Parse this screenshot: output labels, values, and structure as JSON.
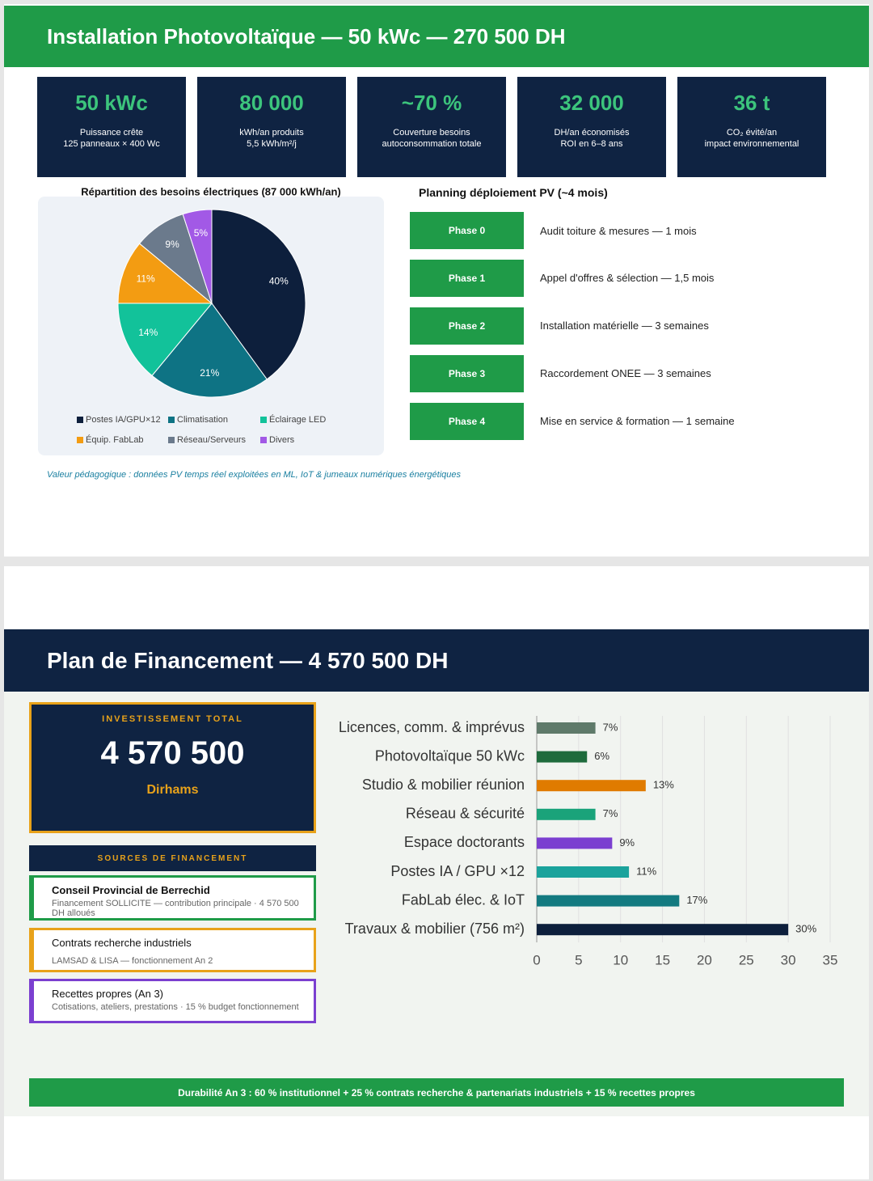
{
  "slide1": {
    "title": "Installation Photovoltaïque — 50 kWc — 270 500 DH",
    "kpis": [
      {
        "value": "50 kWc",
        "label": "Puissance crête",
        "detail": "125 panneaux × 400 Wc"
      },
      {
        "value": "80 000",
        "label": "kWh/an produits",
        "detail": "5,5 kWh/m²/j"
      },
      {
        "value": "~70 %",
        "label": "Couverture besoins",
        "detail": "autoconsommation totale"
      },
      {
        "value": "32 000",
        "label": "DH/an économisés",
        "detail": "ROI en 6–8 ans"
      },
      {
        "value": "36 t",
        "label": "CO₂ évité/an",
        "detail": "impact environnemental"
      }
    ],
    "planning": {
      "title": "Planning déploiement PV (~4 mois)",
      "phases": [
        {
          "phase": "Phase 0",
          "task": "Audit toiture & mesures — 1 mois"
        },
        {
          "phase": "Phase 1",
          "task": "Appel d'offres & sélection — 1,5 mois"
        },
        {
          "phase": "Phase 2",
          "task": "Installation matérielle — 3 semaines"
        },
        {
          "phase": "Phase 3",
          "task": "Raccordement ONEE — 3 semaines"
        },
        {
          "phase": "Phase 4",
          "task": "Mise en service & formation — 1 semaine"
        }
      ]
    },
    "note": "Valeur pédagogique : données PV temps réel exploitées en ML, IoT & jumeaux numériques énergétiques"
  },
  "slide2": {
    "title": "Plan de Financement — 4 570 500 DH",
    "investment": {
      "label": "INVESTISSEMENT TOTAL",
      "amount": "4 570 500",
      "unit": "Dirhams"
    },
    "sources": {
      "title": "SOURCES DE FINANCEMENT",
      "items": [
        {
          "name": "Conseil Provincial de Berrechid",
          "detail": "Financement SOLLICITE — contribution principale · 4 570 500 DH alloués"
        },
        {
          "name": "Contrats recherche industriels",
          "detail": "LAMSAD & LISA — fonctionnement An 2"
        },
        {
          "name": "Recettes propres (An 3)",
          "detail": "Cotisations, ateliers, prestations · 15 % budget fonctionnement"
        }
      ]
    },
    "footer": "Durabilité An 3 : 60 % institutionnel + 25 % contrats recherche & partenariats industriels + 15 % recettes propres"
  },
  "chart_data": [
    {
      "type": "pie",
      "title": "Répartition des besoins électriques (87 000 kWh/an)",
      "categories": [
        "Postes IA/GPU×12",
        "Climatisation",
        "Éclairage LED",
        "Équip. FabLab",
        "Réseau/Serveurs",
        "Divers"
      ],
      "values": [
        40,
        21,
        14,
        11,
        9,
        5
      ],
      "value_labels": [
        "40%",
        "21%",
        "14%",
        "11%",
        "9%",
        "5%"
      ],
      "colors": [
        "#0d1f3c",
        "#0e7384",
        "#12c29a",
        "#f39c12",
        "#6b7a8c",
        "#a259e6"
      ]
    },
    {
      "type": "bar",
      "orientation": "horizontal",
      "categories": [
        "Licences, comm. & imprévus",
        "Photovoltaïque 50 kWc",
        "Studio & mobilier réunion",
        "Réseau & sécurité",
        "Espace doctorants",
        "Postes IA / GPU ×12",
        "FabLab élec. & IoT",
        "Travaux & mobilier (756 m²)"
      ],
      "values": [
        7,
        6,
        13,
        7,
        9,
        11,
        17,
        30
      ],
      "value_labels": [
        "7%",
        "6%",
        "13%",
        "7%",
        "9%",
        "11%",
        "17%",
        "30%"
      ],
      "colors": [
        "#5f7a6a",
        "#1e6b3c",
        "#e07b00",
        "#1aa37a",
        "#7b3fd0",
        "#1ba39c",
        "#137a80",
        "#0d1f3c"
      ],
      "xlim": [
        0,
        35
      ],
      "xticks": [
        0,
        5,
        10,
        15,
        20,
        25,
        30,
        35
      ],
      "grid": true
    }
  ]
}
